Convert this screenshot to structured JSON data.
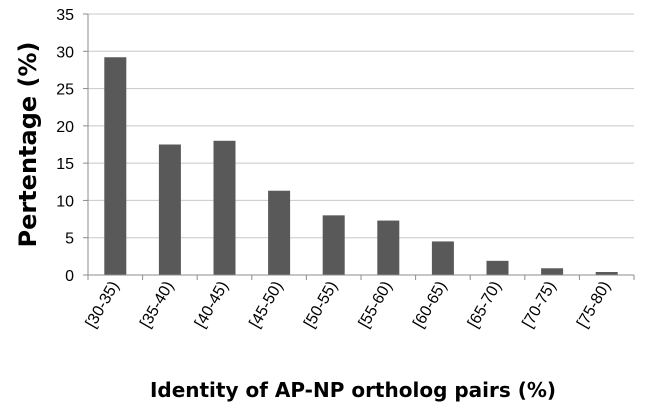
{
  "chart_data": {
    "type": "bar",
    "title": "",
    "xlabel": "Identity of AP-NP ortholog pairs (%)",
    "ylabel": "Pertentage (%)",
    "categories": [
      "[30-35)",
      "[35-40)",
      "[40-45)",
      "[45-50)",
      "[50-55)",
      "[55-60)",
      "[60-65)",
      "[65-70)",
      "[70-75)",
      "[75-80)"
    ],
    "values": [
      29.2,
      17.5,
      18.0,
      11.3,
      8.0,
      7.3,
      4.5,
      1.9,
      0.9,
      0.4
    ],
    "ylim": [
      0,
      35
    ],
    "yticks": [
      0,
      5,
      10,
      15,
      20,
      25,
      30,
      35
    ],
    "grid": true,
    "legend": "none",
    "colors": {
      "bar": "#595959",
      "grid": "#c8c8c8",
      "axis": "#8c8c8c"
    }
  }
}
